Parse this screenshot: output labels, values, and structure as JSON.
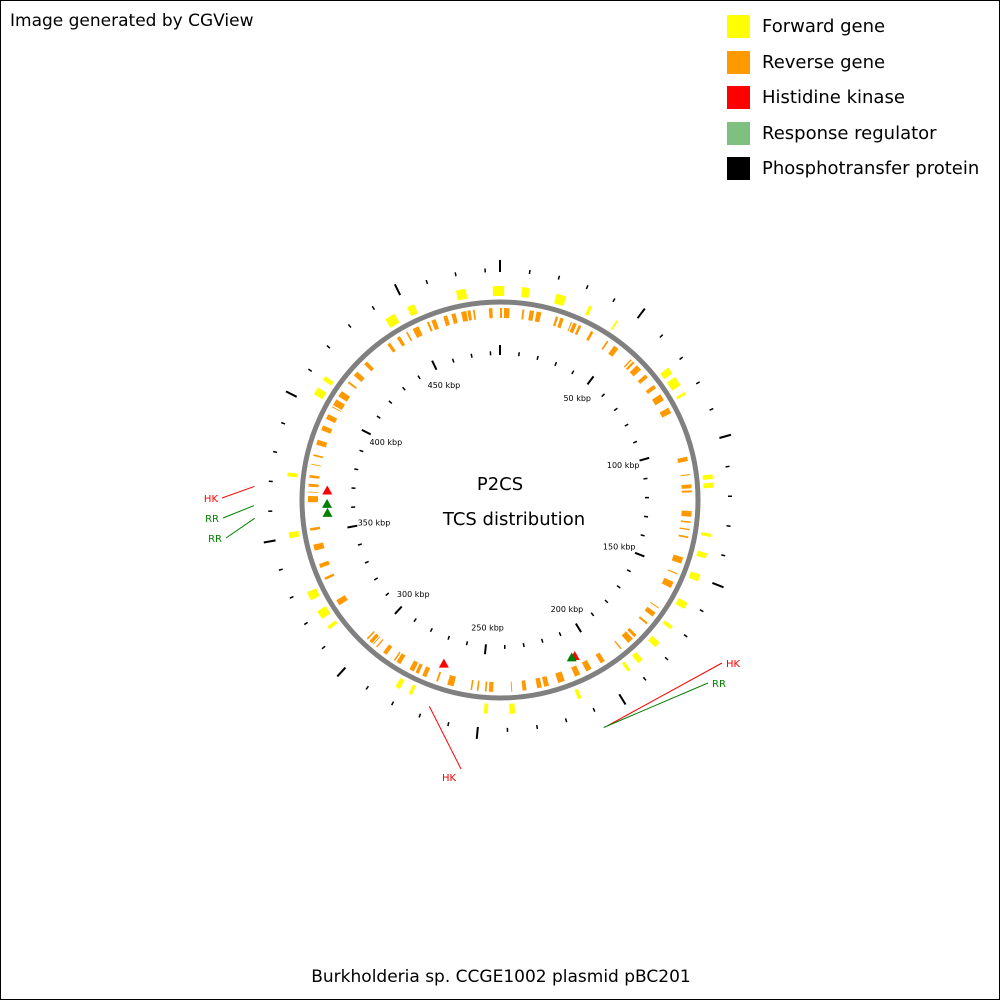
{
  "credit": "Image generated by CGView",
  "legend": [
    {
      "label": "Forward gene",
      "color": "#ffff00"
    },
    {
      "label": "Reverse gene",
      "color": "#ff9900"
    },
    {
      "label": "Histidine kinase",
      "color": "#ff0000"
    },
    {
      "label": "Response regulator",
      "color": "#7fbf7f"
    },
    {
      "label": "Phosphotransfer protein",
      "color": "#000000"
    }
  ],
  "map": {
    "title_line1": "P2CS",
    "title_line2": "TCS distribution",
    "organism": "Burkholderia sp. CCGE1002 plasmid pBC201",
    "sequence_length_kbp": 485,
    "tick_labels": [
      {
        "kbp": 50,
        "label": "50 kbp"
      },
      {
        "kbp": 100,
        "label": "100 kbp"
      },
      {
        "kbp": 150,
        "label": "150 kbp"
      },
      {
        "kbp": 200,
        "label": "200 kbp"
      },
      {
        "kbp": 250,
        "label": "250 kbp"
      },
      {
        "kbp": 300,
        "label": "300 kbp"
      },
      {
        "kbp": 350,
        "label": "350 kbp"
      },
      {
        "kbp": 400,
        "label": "400 kbp"
      },
      {
        "kbp": 450,
        "label": "450 kbp"
      }
    ],
    "tcs_genes": [
      {
        "type": "HK",
        "label": "HK",
        "kbp": 208,
        "color": "#ff0000"
      },
      {
        "type": "RR",
        "label": "RR",
        "kbp": 209.5,
        "color": "#008000"
      },
      {
        "type": "HK",
        "label": "HK",
        "kbp": 268,
        "color": "#ff0000"
      },
      {
        "type": "HK",
        "label": "HK",
        "kbp": 368,
        "color": "#ff0000"
      },
      {
        "type": "RR",
        "label": "RR",
        "kbp": 362,
        "color": "#008000"
      },
      {
        "type": "RR",
        "label": "RR",
        "kbp": 358,
        "color": "#008000"
      }
    ],
    "backbone_color": "#808080",
    "tick_color": "#000000"
  }
}
